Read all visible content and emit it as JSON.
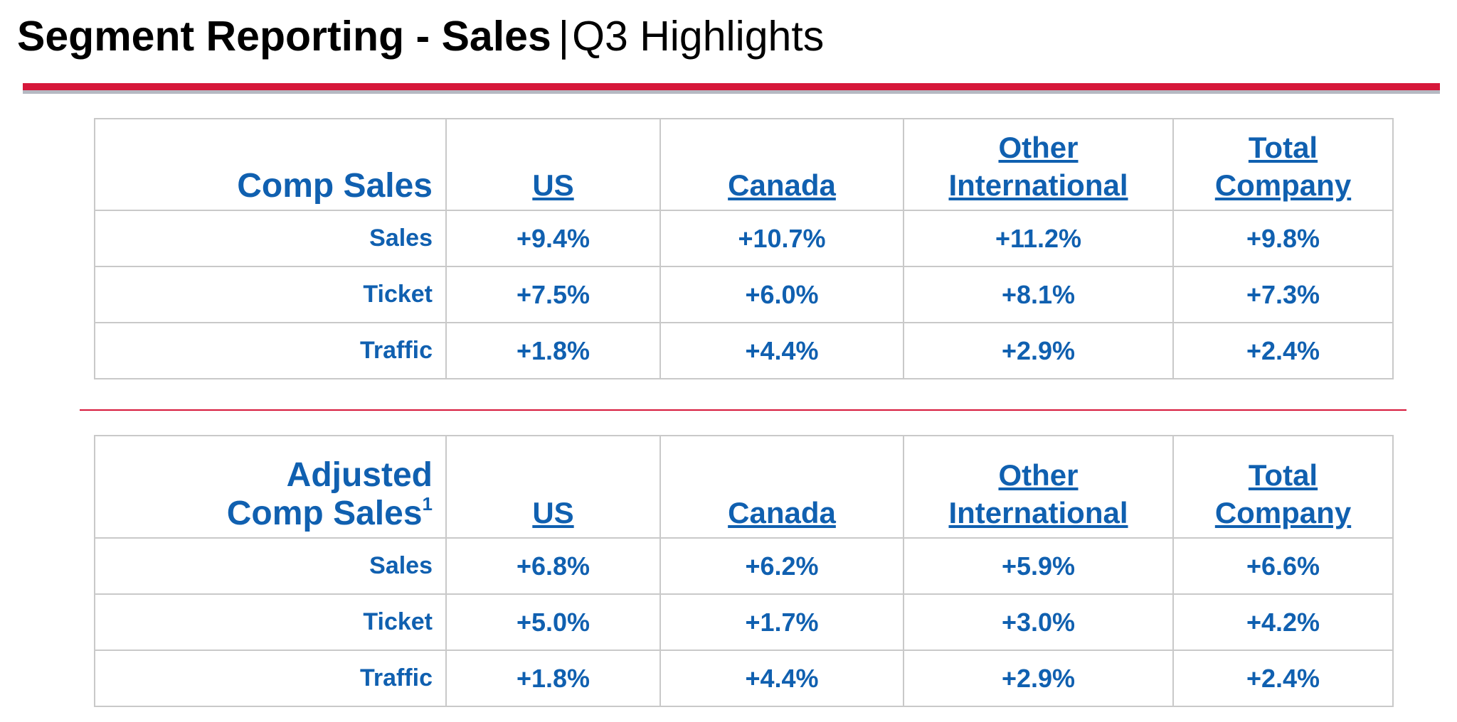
{
  "title": {
    "bold": "Segment Reporting - Sales",
    "separator": "|",
    "subtitle": "Q3 Highlights"
  },
  "columns": {
    "us": "US",
    "canada": "Canada",
    "other_line1": "Other",
    "other_line2": "International",
    "total_line1": "Total",
    "total_line2": "Company"
  },
  "comp_sales": {
    "title": "Comp Sales",
    "rows": [
      {
        "label": "Sales",
        "us": "+9.4%",
        "canada": "+10.7%",
        "other": "+11.2%",
        "total": "+9.8%"
      },
      {
        "label": "Ticket",
        "us": "+7.5%",
        "canada": "+6.0%",
        "other": "+8.1%",
        "total": "+7.3%"
      },
      {
        "label": "Traffic",
        "us": "+1.8%",
        "canada": "+4.4%",
        "other": "+2.9%",
        "total": "+2.4%"
      }
    ]
  },
  "adjusted_comp_sales": {
    "title_line1": "Adjusted",
    "title_line2": "Comp Sales",
    "footnote_marker": "1",
    "rows": [
      {
        "label": "Sales",
        "us": "+6.8%",
        "canada": "+6.2%",
        "other": "+5.9%",
        "total": "+6.6%"
      },
      {
        "label": "Ticket",
        "us": "+5.0%",
        "canada": "+1.7%",
        "other": "+3.0%",
        "total": "+4.2%"
      },
      {
        "label": "Traffic",
        "us": "+1.8%",
        "canada": "+4.4%",
        "other": "+2.9%",
        "total": "+2.4%"
      }
    ]
  },
  "colors": {
    "accent_red": "#d6173a",
    "text_blue": "#1060b0",
    "grid_gray": "#c9c9c9"
  }
}
